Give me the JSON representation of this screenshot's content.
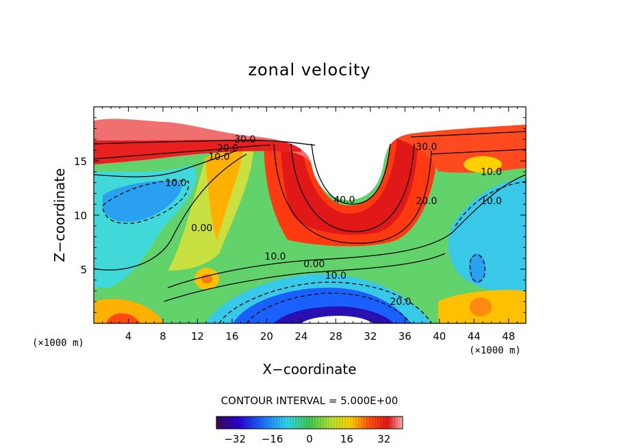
{
  "chart_data": {
    "type": "heatmap",
    "title": "zonal velocity",
    "xlabel": "X−coordinate",
    "ylabel": "Z−coordinate",
    "x_unit": "(×1000 m)",
    "x_ticks": [
      4,
      8,
      12,
      16,
      20,
      24,
      28,
      32,
      36,
      40,
      44,
      48
    ],
    "y_ticks": [
      5,
      10,
      15
    ],
    "xlim": [
      0,
      50
    ],
    "ylim": [
      0,
      20
    ],
    "contour_interval_text": "CONTOUR INTERVAL = 5.000E+00",
    "colorbar_ticks": [
      -32,
      -16,
      0,
      16,
      32
    ],
    "colorbar_range": [
      -40,
      40
    ],
    "contour_labels": [
      {
        "text": "30.0",
        "x": 17.5,
        "y": 16.7
      },
      {
        "text": "20.0",
        "x": 15.5,
        "y": 15.9
      },
      {
        "text": "10.0",
        "x": 14.5,
        "y": 15.1
      },
      {
        "text": "10.0",
        "x": 9.5,
        "y": 12.7
      },
      {
        "text": "0.00",
        "x": 12.5,
        "y": 8.5
      },
      {
        "text": "40.0",
        "x": 29.0,
        "y": 11.1
      },
      {
        "text": "30.0",
        "x": 38.5,
        "y": 16.0
      },
      {
        "text": "20.0",
        "x": 38.5,
        "y": 11.0
      },
      {
        "text": "10.0",
        "x": 46.0,
        "y": 13.7
      },
      {
        "text": "10.0",
        "x": 46.0,
        "y": 11.0
      },
      {
        "text": "10.0",
        "x": 21.0,
        "y": 5.9
      },
      {
        "text": "0.00",
        "x": 25.5,
        "y": 5.2
      },
      {
        "text": "10.0",
        "x": 28.0,
        "y": 4.1
      },
      {
        "text": "20.0",
        "x": 35.5,
        "y": 1.7
      }
    ]
  }
}
